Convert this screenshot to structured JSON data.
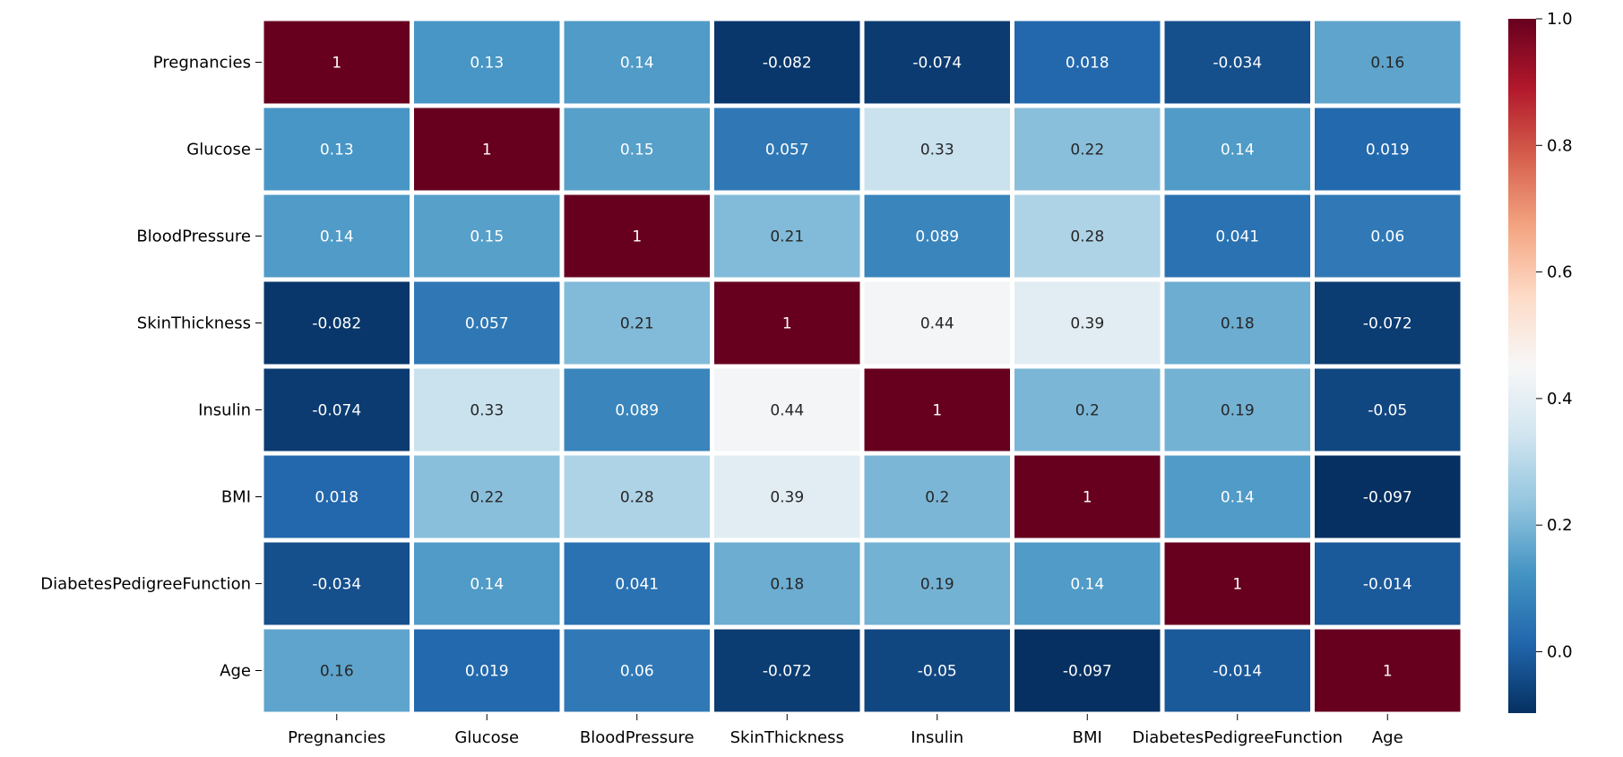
{
  "chart_data": {
    "type": "heatmap",
    "title": "",
    "xlabel": "",
    "ylabel": "",
    "row_labels": [
      "Pregnancies",
      "Glucose",
      "BloodPressure",
      "SkinThickness",
      "Insulin",
      "BMI",
      "DiabetesPedigreeFunction",
      "Age"
    ],
    "col_labels": [
      "Pregnancies",
      "Glucose",
      "BloodPressure",
      "SkinThickness",
      "Insulin",
      "BMI",
      "DiabetesPedigreeFunction",
      "Age"
    ],
    "values": [
      [
        1,
        0.13,
        0.14,
        -0.082,
        -0.074,
        0.018,
        -0.034,
        0.16
      ],
      [
        0.13,
        1,
        0.15,
        0.057,
        0.33,
        0.22,
        0.14,
        0.019
      ],
      [
        0.14,
        0.15,
        1,
        0.21,
        0.089,
        0.28,
        0.041,
        0.06
      ],
      [
        -0.082,
        0.057,
        0.21,
        1,
        0.44,
        0.39,
        0.18,
        -0.072
      ],
      [
        -0.074,
        0.33,
        0.089,
        0.44,
        1,
        0.2,
        0.19,
        -0.05
      ],
      [
        0.018,
        0.22,
        0.28,
        0.39,
        0.2,
        1,
        0.14,
        -0.097
      ],
      [
        -0.034,
        0.14,
        0.041,
        0.18,
        0.19,
        0.14,
        1,
        -0.014
      ],
      [
        0.16,
        0.019,
        0.06,
        -0.072,
        -0.05,
        -0.097,
        -0.014,
        1
      ]
    ],
    "annotations": [
      [
        "1",
        "0.13",
        "0.14",
        "-0.082",
        "-0.074",
        "0.018",
        "-0.034",
        "0.16"
      ],
      [
        "0.13",
        "1",
        "0.15",
        "0.057",
        "0.33",
        "0.22",
        "0.14",
        "0.019"
      ],
      [
        "0.14",
        "0.15",
        "1",
        "0.21",
        "0.089",
        "0.28",
        "0.041",
        "0.06"
      ],
      [
        "-0.082",
        "0.057",
        "0.21",
        "1",
        "0.44",
        "0.39",
        "0.18",
        "-0.072"
      ],
      [
        "-0.074",
        "0.33",
        "0.089",
        "0.44",
        "1",
        "0.2",
        "0.19",
        "-0.05"
      ],
      [
        "0.018",
        "0.22",
        "0.28",
        "0.39",
        "0.2",
        "1",
        "0.14",
        "-0.097"
      ],
      [
        "-0.034",
        "0.14",
        "0.041",
        "0.18",
        "0.19",
        "0.14",
        "1",
        "-0.014"
      ],
      [
        "0.16",
        "0.019",
        "0.06",
        "-0.072",
        "-0.05",
        "-0.097",
        "-0.014",
        "1"
      ]
    ],
    "colormap": "RdBu_r",
    "vmin": -0.097,
    "vmax": 1,
    "colorbar": {
      "ticks": [
        0.0,
        0.2,
        0.4,
        0.6,
        0.8,
        1.0
      ],
      "tick_labels": [
        "0.0",
        "0.2",
        "0.4",
        "0.6",
        "0.8",
        "1.0"
      ]
    },
    "colors": {
      "cell_border": "#ffffff",
      "text_dark": "#262626",
      "text_light": "#ffffff"
    }
  }
}
